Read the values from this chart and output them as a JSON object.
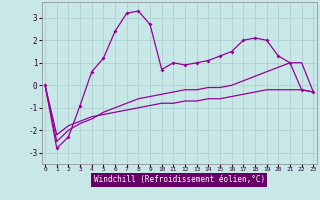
{
  "xlabel": "Windchill (Refroidissement éolien,°C)",
  "bg_color": "#c8e8e8",
  "line_color": "#990099",
  "xlabel_color": "#990099",
  "grid_color": "#aacccc",
  "axis_label_bg": "#660066",
  "ylim": [
    -3.5,
    3.7
  ],
  "xlim": [
    -0.3,
    23.3
  ],
  "yticks": [
    -3,
    -2,
    -1,
    0,
    1,
    2,
    3
  ],
  "xticks": [
    0,
    1,
    2,
    3,
    4,
    5,
    6,
    7,
    8,
    9,
    10,
    11,
    12,
    13,
    14,
    15,
    16,
    17,
    18,
    19,
    20,
    21,
    22,
    23
  ],
  "series1_x": [
    0,
    1,
    2,
    3,
    4,
    5,
    6,
    7,
    8,
    9,
    10,
    11,
    12,
    13,
    14,
    15,
    16,
    17,
    18,
    19,
    20,
    21,
    22,
    23
  ],
  "series1_y": [
    0.0,
    -2.8,
    -2.3,
    -0.9,
    0.6,
    1.2,
    2.4,
    3.2,
    3.3,
    2.7,
    0.7,
    1.0,
    0.9,
    1.0,
    1.1,
    1.3,
    1.5,
    2.0,
    2.1,
    2.0,
    1.3,
    1.0,
    -0.2,
    -0.3
  ],
  "series2_x": [
    0,
    1,
    2,
    3,
    4,
    5,
    6,
    7,
    8,
    9,
    10,
    11,
    12,
    13,
    14,
    15,
    16,
    17,
    18,
    19,
    20,
    21,
    22,
    23
  ],
  "series2_y": [
    0.0,
    -2.2,
    -1.8,
    -1.6,
    -1.4,
    -1.3,
    -1.2,
    -1.1,
    -1.0,
    -0.9,
    -0.8,
    -0.8,
    -0.7,
    -0.7,
    -0.6,
    -0.6,
    -0.5,
    -0.4,
    -0.3,
    -0.2,
    -0.2,
    -0.2,
    -0.2,
    -0.3
  ],
  "series3_x": [
    0,
    1,
    2,
    3,
    4,
    5,
    6,
    7,
    8,
    9,
    10,
    11,
    12,
    13,
    14,
    15,
    16,
    17,
    18,
    19,
    20,
    21,
    22,
    23
  ],
  "series3_y": [
    0.0,
    -2.5,
    -2.0,
    -1.7,
    -1.5,
    -1.2,
    -1.0,
    -0.8,
    -0.6,
    -0.5,
    -0.4,
    -0.3,
    -0.2,
    -0.2,
    -0.1,
    -0.1,
    0.0,
    0.2,
    0.4,
    0.6,
    0.8,
    1.0,
    1.0,
    -0.3
  ]
}
